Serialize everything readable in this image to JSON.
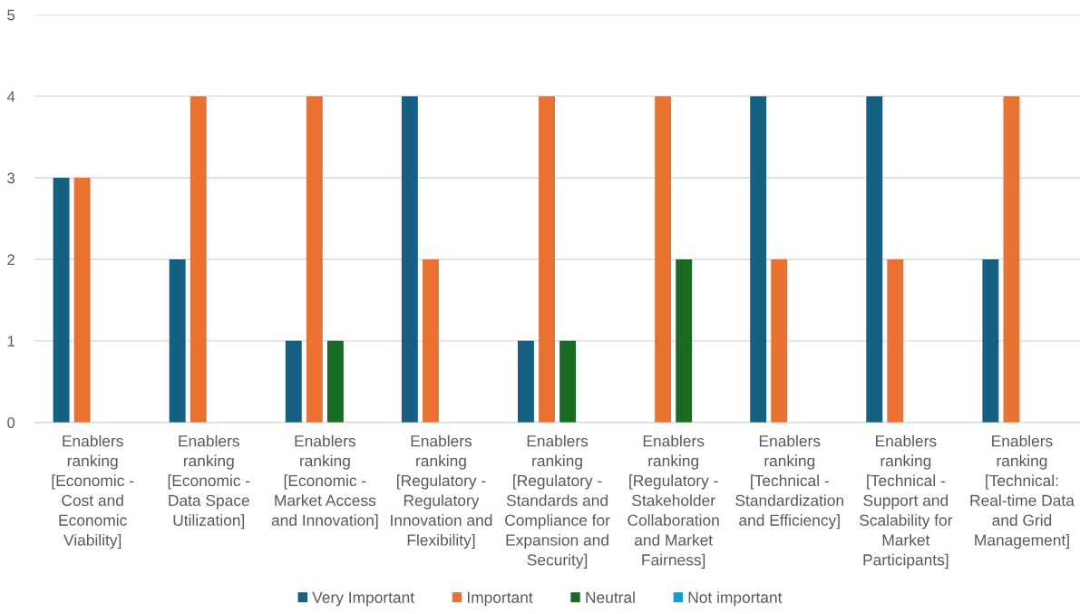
{
  "chart_data": {
    "type": "bar",
    "categories": [
      "Enablers\nranking\n[Economic -\nCost and\nEconomic\nViability]",
      "Enablers\nranking\n[Economic -\nData Space\nUtilization]",
      "Enablers\nranking\n[Economic -\nMarket Access\nand Innovation]",
      "Enablers\nranking\n[Regulatory -\nRegulatory\nInnovation and\nFlexibility]",
      "Enablers\nranking\n[Regulatory -\nStandards and\nCompliance for\nExpansion and\nSecurity]",
      "Enablers\nranking\n[Regulatory -\nStakeholder\nCollaboration\nand Market\nFairness]",
      "Enablers\nranking\n[Technical -\nStandardization\nand Efficiency]",
      "Enablers\nranking\n[Technical -\nSupport and\nScalability for\nMarket\nParticipants]",
      "Enablers\nranking\n[Technical:\nReal-time Data\nand Grid\nManagement]"
    ],
    "series": [
      {
        "name": "Very Important",
        "color": "#156082",
        "values": [
          3,
          2,
          1,
          4,
          1,
          null,
          4,
          4,
          2
        ]
      },
      {
        "name": "Important",
        "color": "#e97132",
        "values": [
          3,
          4,
          4,
          2,
          4,
          4,
          2,
          2,
          4
        ]
      },
      {
        "name": "Neutral",
        "color": "#196b24",
        "values": [
          null,
          null,
          1,
          null,
          1,
          2,
          null,
          null,
          null
        ]
      },
      {
        "name": "Not important",
        "color": "#0f9ed5",
        "values": [
          null,
          null,
          null,
          null,
          null,
          null,
          null,
          null,
          null
        ]
      }
    ],
    "ylim": [
      0,
      5
    ],
    "yticks": [
      0,
      1,
      2,
      3,
      4,
      5
    ],
    "grid": "y",
    "legend": "bottom"
  }
}
